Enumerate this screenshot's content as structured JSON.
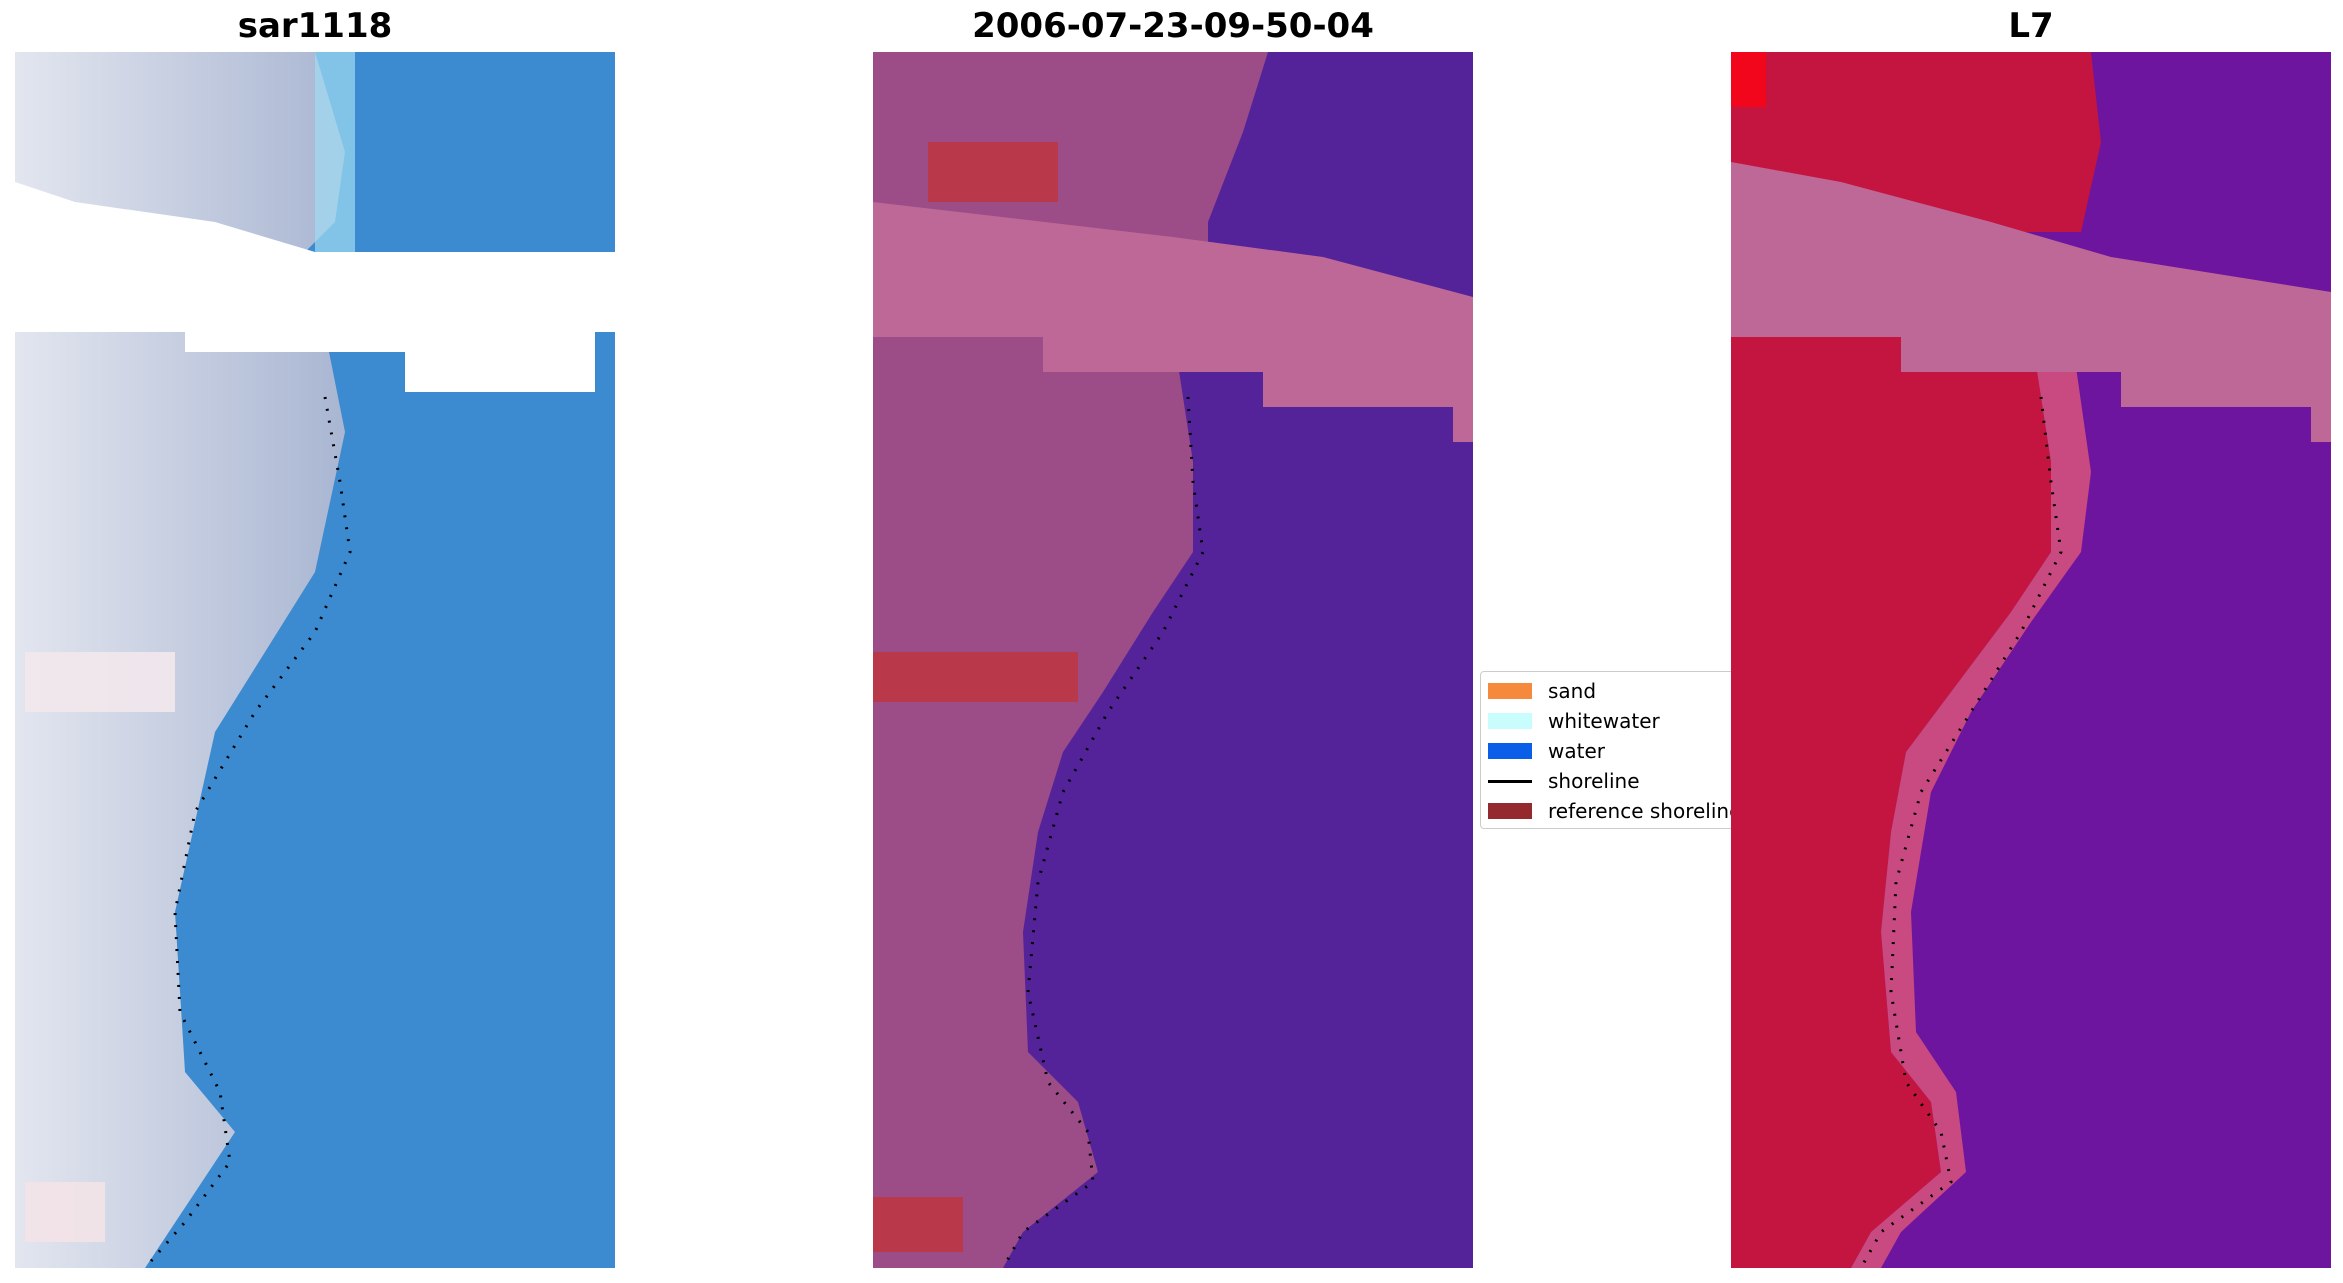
{
  "panels": [
    {
      "id": "sar",
      "title": "sar1118"
    },
    {
      "id": "classification",
      "title": "2006-07-23-09-50-04"
    },
    {
      "id": "index",
      "title": "L7"
    }
  ],
  "legend": {
    "items": [
      {
        "label": "sand",
        "color": "#f68a3c",
        "kind": "patch"
      },
      {
        "label": "whitewater",
        "color": "#c9fdfd",
        "kind": "patch"
      },
      {
        "label": "water",
        "color": "#0b5ee8",
        "kind": "patch"
      },
      {
        "label": "shoreline",
        "color": "#000000",
        "kind": "line"
      },
      {
        "label": "reference shoreline",
        "color": "#942a2d",
        "kind": "patch"
      }
    ]
  },
  "colors": {
    "sar_land": "#c7cddc",
    "sar_water": "#3c8bd0",
    "class_land": "#9c4c86",
    "class_water": "#542399",
    "class_cloud": "#be6898",
    "class_sand_patch": "#b9384a",
    "index_land": "#c3153f",
    "index_water": "#6d159e",
    "index_cloud": "#be6898"
  }
}
